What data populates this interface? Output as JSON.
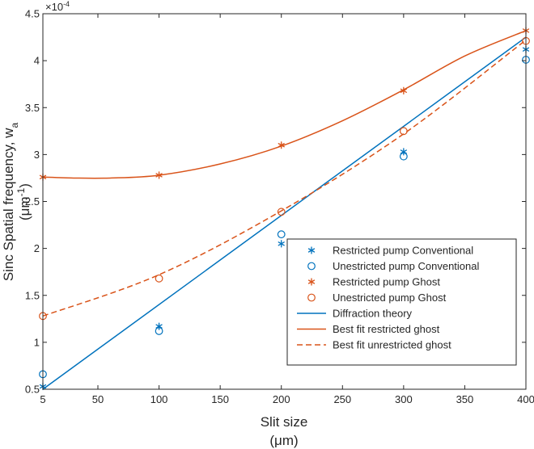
{
  "chart_data": {
    "type": "scatter",
    "xlabel": [
      "Slit size",
      "(μm)"
    ],
    "ylabel": [
      "Sinc Spatial frequency, w",
      "a",
      "(μm",
      "-1",
      ")"
    ],
    "exponent_label": [
      "×10",
      "-4"
    ],
    "xlim": [
      5,
      400
    ],
    "ylim": [
      0.5,
      4.5
    ],
    "y_scale_factor": 0.0001,
    "xticks": [
      5,
      50,
      100,
      150,
      200,
      250,
      300,
      350,
      400
    ],
    "yticks": [
      0.5,
      1,
      1.5,
      2,
      2.5,
      3,
      3.5,
      4,
      4.5
    ],
    "xtick_labels": [
      "5",
      "50",
      "100",
      "150",
      "200",
      "250",
      "300",
      "350",
      "400"
    ],
    "ytick_labels": [
      "0.5",
      "1",
      "1.5",
      "2",
      "2.5",
      "3",
      "3.5",
      "4",
      "4.5"
    ],
    "grid": false,
    "legend_position": "bottom-right",
    "series": [
      {
        "name": "Restricted pump Conventional",
        "kind": "marker",
        "marker": "star",
        "color": "#0072BD",
        "x": [
          5,
          100,
          200,
          300,
          400
        ],
        "y": [
          0.53,
          1.17,
          2.05,
          3.03,
          4.12
        ]
      },
      {
        "name": "Unestricted pump Conventional",
        "kind": "marker",
        "marker": "circle",
        "color": "#0072BD",
        "x": [
          5,
          100,
          200,
          300,
          400
        ],
        "y": [
          0.66,
          1.12,
          2.15,
          2.98,
          4.01
        ]
      },
      {
        "name": "Restricted pump Ghost",
        "kind": "marker",
        "marker": "star",
        "color": "#D95319",
        "x": [
          5,
          100,
          200,
          300,
          400
        ],
        "y": [
          2.76,
          2.78,
          3.1,
          3.68,
          4.32
        ]
      },
      {
        "name": "Unestricted pump Ghost",
        "kind": "marker",
        "marker": "circle",
        "color": "#D95319",
        "x": [
          5,
          100,
          200,
          300,
          400
        ],
        "y": [
          1.28,
          1.68,
          2.39,
          3.25,
          4.21
        ]
      },
      {
        "name": "Diffraction theory",
        "kind": "line",
        "dash": "solid",
        "color": "#0072BD",
        "x": [
          5,
          400
        ],
        "y": [
          0.5,
          4.25
        ]
      },
      {
        "name": "Best fit restricted ghost",
        "kind": "line",
        "dash": "solid",
        "color": "#D95319",
        "x": [
          5,
          30,
          60,
          100,
          150,
          200,
          250,
          300,
          350,
          400
        ],
        "y": [
          2.76,
          2.75,
          2.75,
          2.78,
          2.9,
          3.09,
          3.36,
          3.69,
          4.05,
          4.32
        ]
      },
      {
        "name": "Best fit unrestricted ghost",
        "kind": "line",
        "dash": "dashed",
        "color": "#D95319",
        "x": [
          5,
          100,
          200,
          300,
          400
        ],
        "y": [
          1.28,
          1.72,
          2.4,
          3.22,
          4.22
        ]
      }
    ]
  }
}
